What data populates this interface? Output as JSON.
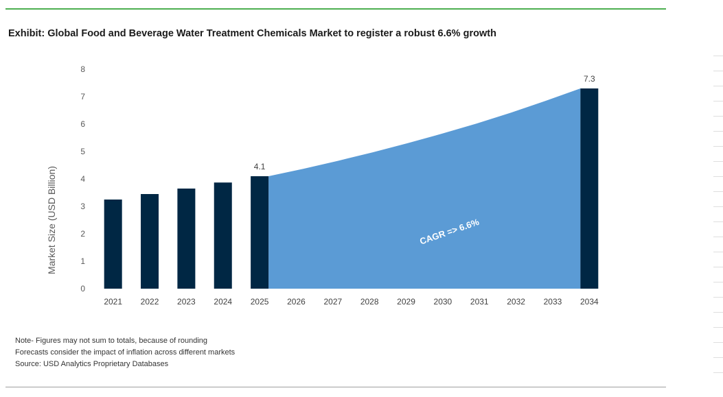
{
  "header": {
    "title": "Exhibit: Global Food and Beverage Water Treatment Chemicals Market to register a robust 6.6% growth"
  },
  "notes": {
    "line1": "Note- Figures may not sum to totals, because of rounding",
    "line2": "Forecasts consider the impact of inflation across different markets",
    "line3": "Source: USD Analytics Proprietary Databases"
  },
  "colors": {
    "bar": "#002744",
    "area": "#5b9bd5",
    "cagr_text": "#ffffff",
    "axis_text": "#595959"
  },
  "chart_data": {
    "type": "bar",
    "title": "Exhibit: Global Food and Beverage Water Treatment Chemicals Market to register a robust 6.6% growth",
    "xlabel": "",
    "ylabel": "Market Size (USD Billion)",
    "ylim": [
      0,
      8
    ],
    "yticks": [
      0,
      1,
      2,
      3,
      4,
      5,
      6,
      7,
      8
    ],
    "grid": false,
    "categories": [
      "2021",
      "2022",
      "2023",
      "2024",
      "2025",
      "2026",
      "2027",
      "2028",
      "2029",
      "2030",
      "2031",
      "2032",
      "2033",
      "2034"
    ],
    "series": [
      {
        "name": "Market Size",
        "values": [
          3.25,
          3.45,
          3.65,
          3.87,
          4.1,
          null,
          null,
          null,
          null,
          null,
          null,
          null,
          null,
          7.3
        ]
      }
    ],
    "forecast_area": {
      "name": "CAGR projection",
      "start_year": "2025",
      "end_year": "2034",
      "start_value": 4.1,
      "end_value": 7.3,
      "values": [
        4.1,
        4.37,
        4.66,
        4.97,
        5.3,
        5.65,
        6.02,
        6.42,
        6.85,
        7.3
      ]
    },
    "data_labels": [
      {
        "category": "2025",
        "text": "4.1"
      },
      {
        "category": "2034",
        "text": "7.3"
      }
    ],
    "annotation": "CAGR => 6.6%"
  }
}
